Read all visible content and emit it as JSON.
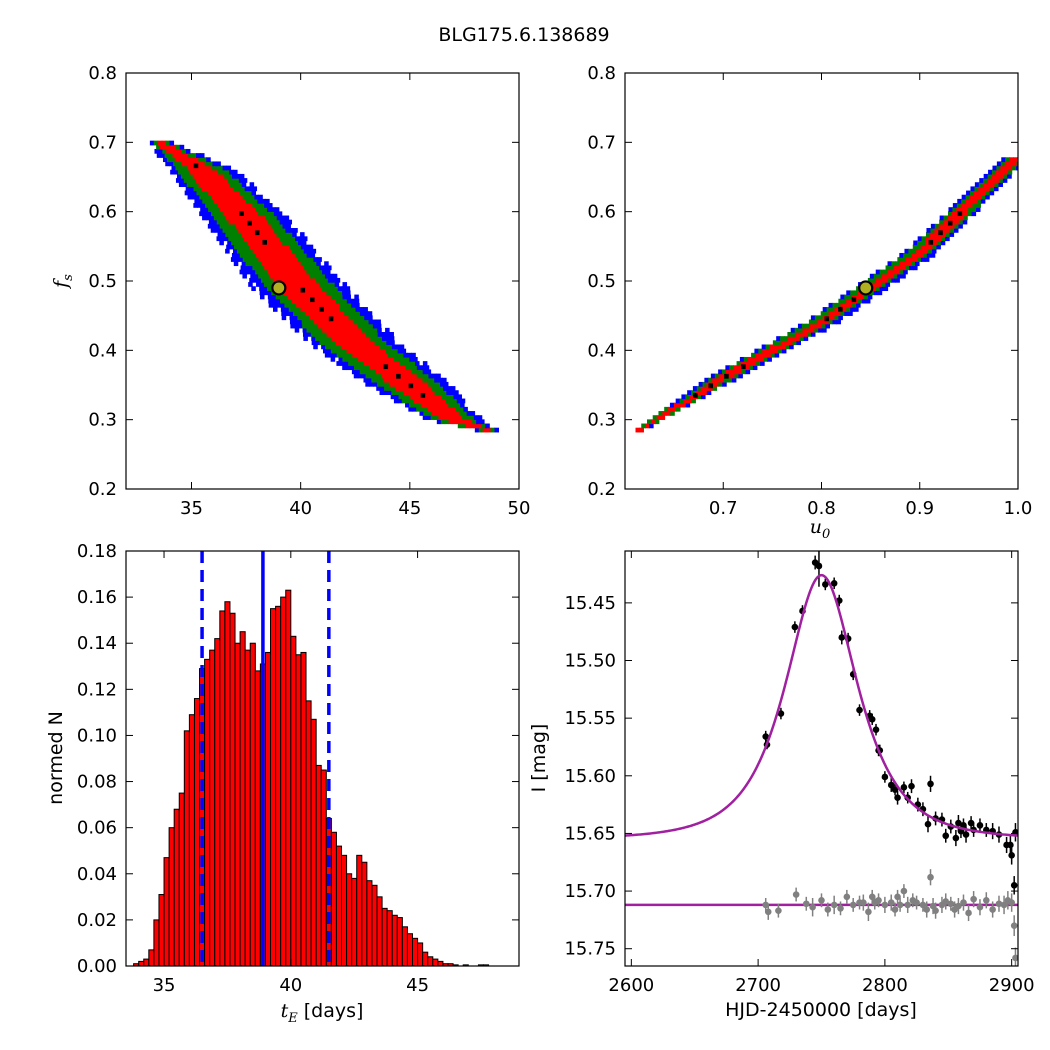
{
  "title": "BLG175.6.138689",
  "colors": {
    "outer": "#0000ff",
    "mid": "#008000",
    "inner": "#ff0000",
    "best": "#000000",
    "marker_fill": "#b0b020",
    "hist_bar": "#ff0000",
    "vline": "#0000ff",
    "model": "#a020a0",
    "data_main": "#000000",
    "data_second": "#808080"
  },
  "chart_data": [
    {
      "type": "scatter",
      "name": "tE_fs_posterior",
      "xlabel": "",
      "ylabel": "f_s",
      "xlim": [
        32,
        50
      ],
      "ylim": [
        0.2,
        0.8
      ],
      "xticks": [
        "35",
        "40",
        "45",
        "50"
      ],
      "yticks": [
        "0.2",
        "0.3",
        "0.4",
        "0.5",
        "0.6",
        "0.7",
        "0.8"
      ],
      "band": {
        "x": [
          33.6,
          35.5,
          37.5,
          40.0,
          42.5,
          45.0,
          47.0,
          48.5
        ],
        "y": [
          0.7,
          0.66,
          0.59,
          0.49,
          0.41,
          0.35,
          0.3,
          0.285
        ],
        "half_width": [
          0.4,
          1.2,
          1.5,
          1.7,
          1.6,
          1.5,
          1.0,
          0.4
        ]
      },
      "best_fit": {
        "x": 39.0,
        "y": 0.49
      }
    },
    {
      "type": "scatter",
      "name": "u0_fs_posterior",
      "xlabel": "u_0",
      "ylabel": "",
      "xlim": [
        0.6,
        1.0
      ],
      "ylim": [
        0.2,
        0.8
      ],
      "xticks": [
        "0.7",
        "0.8",
        "0.9",
        "1.0"
      ],
      "yticks": [
        "0.2",
        "0.3",
        "0.4",
        "0.5",
        "0.6",
        "0.7",
        "0.8"
      ],
      "band": {
        "x": [
          0.615,
          0.7,
          0.8,
          0.9,
          1.0
        ],
        "y": [
          0.285,
          0.36,
          0.44,
          0.54,
          0.68
        ],
        "half_width": [
          0.004,
          0.012,
          0.013,
          0.013,
          0.01
        ]
      },
      "best_fit": {
        "x": 0.845,
        "y": 0.49
      }
    },
    {
      "type": "bar",
      "name": "tE_histogram",
      "xlabel": "t_E [days]",
      "ylabel": "normed N",
      "xlim": [
        33.5,
        49
      ],
      "ylim": [
        0.0,
        0.18
      ],
      "xticks": [
        "35",
        "40",
        "45"
      ],
      "yticks": [
        "0.00",
        "0.02",
        "0.04",
        "0.06",
        "0.08",
        "0.10",
        "0.12",
        "0.14",
        "0.16",
        "0.18"
      ],
      "bin_start": 33.8,
      "bin_width": 0.2,
      "values": [
        0.001,
        0.002,
        0.003,
        0.007,
        0.02,
        0.031,
        0.047,
        0.06,
        0.068,
        0.075,
        0.102,
        0.109,
        0.116,
        0.129,
        0.133,
        0.137,
        0.142,
        0.154,
        0.158,
        0.153,
        0.14,
        0.145,
        0.137,
        0.14,
        0.128,
        0.131,
        0.136,
        0.155,
        0.156,
        0.16,
        0.163,
        0.143,
        0.135,
        0.136,
        0.115,
        0.107,
        0.087,
        0.085,
        0.064,
        0.058,
        0.052,
        0.048,
        0.04,
        0.038,
        0.048,
        0.045,
        0.037,
        0.035,
        0.03,
        0.025,
        0.024,
        0.022,
        0.021,
        0.017,
        0.014,
        0.012,
        0.01,
        0.006,
        0.004,
        0.003,
        0.002,
        0.001,
        0.001,
        0.0005,
        0.0,
        0.0005,
        0.0,
        0.0,
        0.0005,
        0.0005,
        0.0,
        0.0
      ],
      "vlines": {
        "median": 38.9,
        "lower": 36.5,
        "upper": 41.5
      }
    },
    {
      "type": "line",
      "name": "light_curve",
      "xlabel": "HJD-2450000 [days]",
      "ylabel": "I [mag]",
      "xlim": [
        2595,
        2905
      ],
      "ylim": [
        15.765,
        15.405
      ],
      "xticks": [
        "2600",
        "2700",
        "2800",
        "2900"
      ],
      "yticks": [
        "15.45",
        "15.50",
        "15.55",
        "15.60",
        "15.65",
        "15.70",
        "15.75"
      ],
      "model": {
        "t0": 2750,
        "tE": 39.0,
        "u0": 0.845,
        "fs": 0.49,
        "I_base": 15.655
      },
      "flat_model_mag": 15.712,
      "main_points": {
        "x": [
          2706,
          2707,
          2718,
          2729,
          2735,
          2745,
          2748,
          2753,
          2760,
          2764,
          2766,
          2771,
          2775,
          2780,
          2788,
          2790,
          2793,
          2795,
          2796,
          2800,
          2805,
          2808,
          2810,
          2815,
          2818,
          2821,
          2826,
          2830,
          2834,
          2836,
          2840,
          2845,
          2848,
          2852,
          2856,
          2858,
          2860,
          2862,
          2864,
          2868,
          2870,
          2875,
          2880,
          2885,
          2890,
          2896,
          2899,
          2900,
          2902,
          2903
        ],
        "y": [
          15.566,
          15.573,
          15.546,
          15.471,
          15.457,
          15.415,
          15.418,
          15.434,
          15.433,
          15.448,
          15.48,
          15.481,
          15.512,
          15.543,
          15.548,
          15.551,
          15.56,
          15.578,
          15.578,
          15.601,
          15.608,
          15.612,
          15.619,
          15.61,
          15.619,
          15.609,
          15.625,
          15.629,
          15.642,
          15.607,
          15.637,
          15.638,
          15.652,
          15.644,
          15.654,
          15.641,
          15.648,
          15.643,
          15.651,
          15.641,
          15.647,
          15.643,
          15.647,
          15.648,
          15.651,
          15.66,
          15.66,
          15.669,
          15.695,
          15.649
        ],
        "err": [
          0.005,
          0.004,
          0.005,
          0.005,
          0.005,
          0.006,
          0.018,
          0.005,
          0.005,
          0.005,
          0.006,
          0.005,
          0.005,
          0.005,
          0.005,
          0.005,
          0.005,
          0.005,
          0.005,
          0.005,
          0.006,
          0.005,
          0.006,
          0.005,
          0.005,
          0.006,
          0.006,
          0.006,
          0.007,
          0.007,
          0.006,
          0.006,
          0.006,
          0.006,
          0.007,
          0.007,
          0.006,
          0.006,
          0.007,
          0.006,
          0.006,
          0.006,
          0.006,
          0.007,
          0.007,
          0.007,
          0.008,
          0.008,
          0.008,
          0.008
        ]
      },
      "second_points": {
        "x": [
          2706,
          2708,
          2716,
          2730,
          2738,
          2743,
          2750,
          2755,
          2760,
          2765,
          2770,
          2775,
          2780,
          2783,
          2787,
          2790,
          2792,
          2795,
          2800,
          2805,
          2808,
          2810,
          2812,
          2815,
          2818,
          2822,
          2825,
          2830,
          2833,
          2836,
          2838,
          2840,
          2845,
          2848,
          2852,
          2855,
          2858,
          2862,
          2866,
          2870,
          2875,
          2880,
          2885,
          2890,
          2894,
          2897,
          2900,
          2902,
          2903
        ],
        "y": [
          15.712,
          15.718,
          15.717,
          15.703,
          15.711,
          15.714,
          15.708,
          15.716,
          15.712,
          15.715,
          15.705,
          15.712,
          15.71,
          15.71,
          15.718,
          15.705,
          15.71,
          15.708,
          15.712,
          15.71,
          15.716,
          15.705,
          15.712,
          15.7,
          15.712,
          15.708,
          15.71,
          15.712,
          15.716,
          15.688,
          15.713,
          15.717,
          15.712,
          15.709,
          15.711,
          15.716,
          15.713,
          15.71,
          15.719,
          15.707,
          15.714,
          15.708,
          15.716,
          15.711,
          15.712,
          15.708,
          15.71,
          15.73,
          15.758
        ],
        "err": [
          0.006,
          0.007,
          0.006,
          0.006,
          0.006,
          0.008,
          0.006,
          0.006,
          0.008,
          0.006,
          0.006,
          0.006,
          0.006,
          0.007,
          0.008,
          0.006,
          0.006,
          0.006,
          0.007,
          0.007,
          0.006,
          0.006,
          0.006,
          0.006,
          0.007,
          0.006,
          0.006,
          0.006,
          0.007,
          0.007,
          0.007,
          0.007,
          0.007,
          0.007,
          0.006,
          0.007,
          0.007,
          0.007,
          0.007,
          0.007,
          0.007,
          0.007,
          0.007,
          0.007,
          0.008,
          0.008,
          0.008,
          0.009,
          0.009
        ]
      }
    }
  ]
}
